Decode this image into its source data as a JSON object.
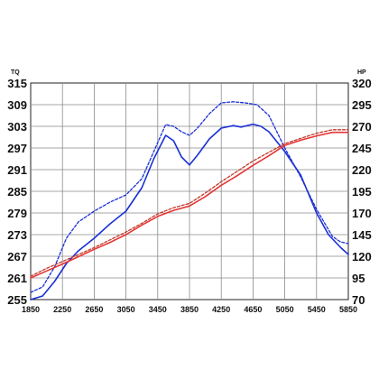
{
  "chart_data": {
    "type": "line",
    "title": "",
    "xlabel": "",
    "y_left_label": "TQ",
    "y_right_label": "HP",
    "x_range": [
      1850,
      5850
    ],
    "x_ticks": [
      "1850",
      "2250",
      "2650",
      "3050",
      "3450",
      "3850",
      "4250",
      "4650",
      "5050",
      "5450",
      "5850"
    ],
    "y_left_range": [
      255,
      315
    ],
    "y_left_ticks": [
      "255",
      "261",
      "267",
      "273",
      "279",
      "285",
      "291",
      "297",
      "303",
      "309",
      "315"
    ],
    "y_right_range": [
      70,
      320
    ],
    "y_right_ticks": [
      "70",
      "95",
      "120",
      "145",
      "170",
      "195",
      "220",
      "245",
      "270",
      "295",
      "320"
    ],
    "grid": true,
    "legend": "none",
    "series": [
      {
        "axis": "left",
        "color": "#1a2fd6",
        "style": "solid",
        "points": [
          [
            1850,
            255
          ],
          [
            2000,
            256
          ],
          [
            2150,
            260
          ],
          [
            2300,
            265
          ],
          [
            2450,
            268.5
          ],
          [
            2650,
            272
          ],
          [
            2850,
            276
          ],
          [
            3050,
            279.5
          ],
          [
            3250,
            286
          ],
          [
            3400,
            294
          ],
          [
            3550,
            300.5
          ],
          [
            3650,
            299
          ],
          [
            3750,
            294.5
          ],
          [
            3850,
            292.3
          ],
          [
            3950,
            295
          ],
          [
            4100,
            299.5
          ],
          [
            4250,
            302.5
          ],
          [
            4400,
            303.2
          ],
          [
            4500,
            302.8
          ],
          [
            4650,
            303.6
          ],
          [
            4750,
            303
          ],
          [
            4850,
            301.5
          ],
          [
            5050,
            296
          ],
          [
            5250,
            289.5
          ],
          [
            5450,
            279
          ],
          [
            5600,
            273
          ],
          [
            5750,
            269.5
          ],
          [
            5850,
            267.5
          ]
        ]
      },
      {
        "axis": "left",
        "color": "#1a2fd6",
        "style": "dashed",
        "points": [
          [
            1850,
            257
          ],
          [
            2000,
            258.5
          ],
          [
            2150,
            264
          ],
          [
            2300,
            272
          ],
          [
            2450,
            276.5
          ],
          [
            2650,
            279.5
          ],
          [
            2850,
            282
          ],
          [
            3050,
            284
          ],
          [
            3250,
            288.5
          ],
          [
            3400,
            296
          ],
          [
            3550,
            303.5
          ],
          [
            3650,
            303
          ],
          [
            3750,
            301.5
          ],
          [
            3850,
            300.5
          ],
          [
            3950,
            302.5
          ],
          [
            4100,
            306.5
          ],
          [
            4250,
            309.5
          ],
          [
            4400,
            309.8
          ],
          [
            4550,
            309.5
          ],
          [
            4700,
            309
          ],
          [
            4850,
            306
          ],
          [
            5050,
            297
          ],
          [
            5250,
            289
          ],
          [
            5450,
            280
          ],
          [
            5650,
            272.5
          ],
          [
            5750,
            271
          ],
          [
            5850,
            270.5
          ]
        ]
      },
      {
        "axis": "right",
        "color": "#e53535",
        "style": "solid",
        "points": [
          [
            1850,
            95
          ],
          [
            2050,
            103
          ],
          [
            2250,
            111
          ],
          [
            2450,
            119.5
          ],
          [
            2650,
            128
          ],
          [
            2850,
            136
          ],
          [
            3050,
            145
          ],
          [
            3250,
            156
          ],
          [
            3450,
            166
          ],
          [
            3650,
            173
          ],
          [
            3850,
            178
          ],
          [
            4050,
            189
          ],
          [
            4250,
            202
          ],
          [
            4450,
            213
          ],
          [
            4650,
            225
          ],
          [
            4850,
            236
          ],
          [
            5050,
            248
          ],
          [
            5250,
            254
          ],
          [
            5450,
            259
          ],
          [
            5650,
            263
          ],
          [
            5850,
            263
          ]
        ]
      },
      {
        "axis": "right",
        "color": "#c0392b",
        "style": "dashed",
        "points": [
          [
            1850,
            97
          ],
          [
            2050,
            106
          ],
          [
            2250,
            114
          ],
          [
            2450,
            122
          ],
          [
            2650,
            130
          ],
          [
            2850,
            139
          ],
          [
            3050,
            148
          ],
          [
            3250,
            158
          ],
          [
            3450,
            169
          ],
          [
            3650,
            176
          ],
          [
            3850,
            181
          ],
          [
            4050,
            193
          ],
          [
            4250,
            206
          ],
          [
            4450,
            218
          ],
          [
            4650,
            230
          ],
          [
            4850,
            240
          ],
          [
            5050,
            250
          ],
          [
            5250,
            256
          ],
          [
            5450,
            262
          ],
          [
            5650,
            266
          ],
          [
            5850,
            266
          ]
        ]
      }
    ]
  }
}
